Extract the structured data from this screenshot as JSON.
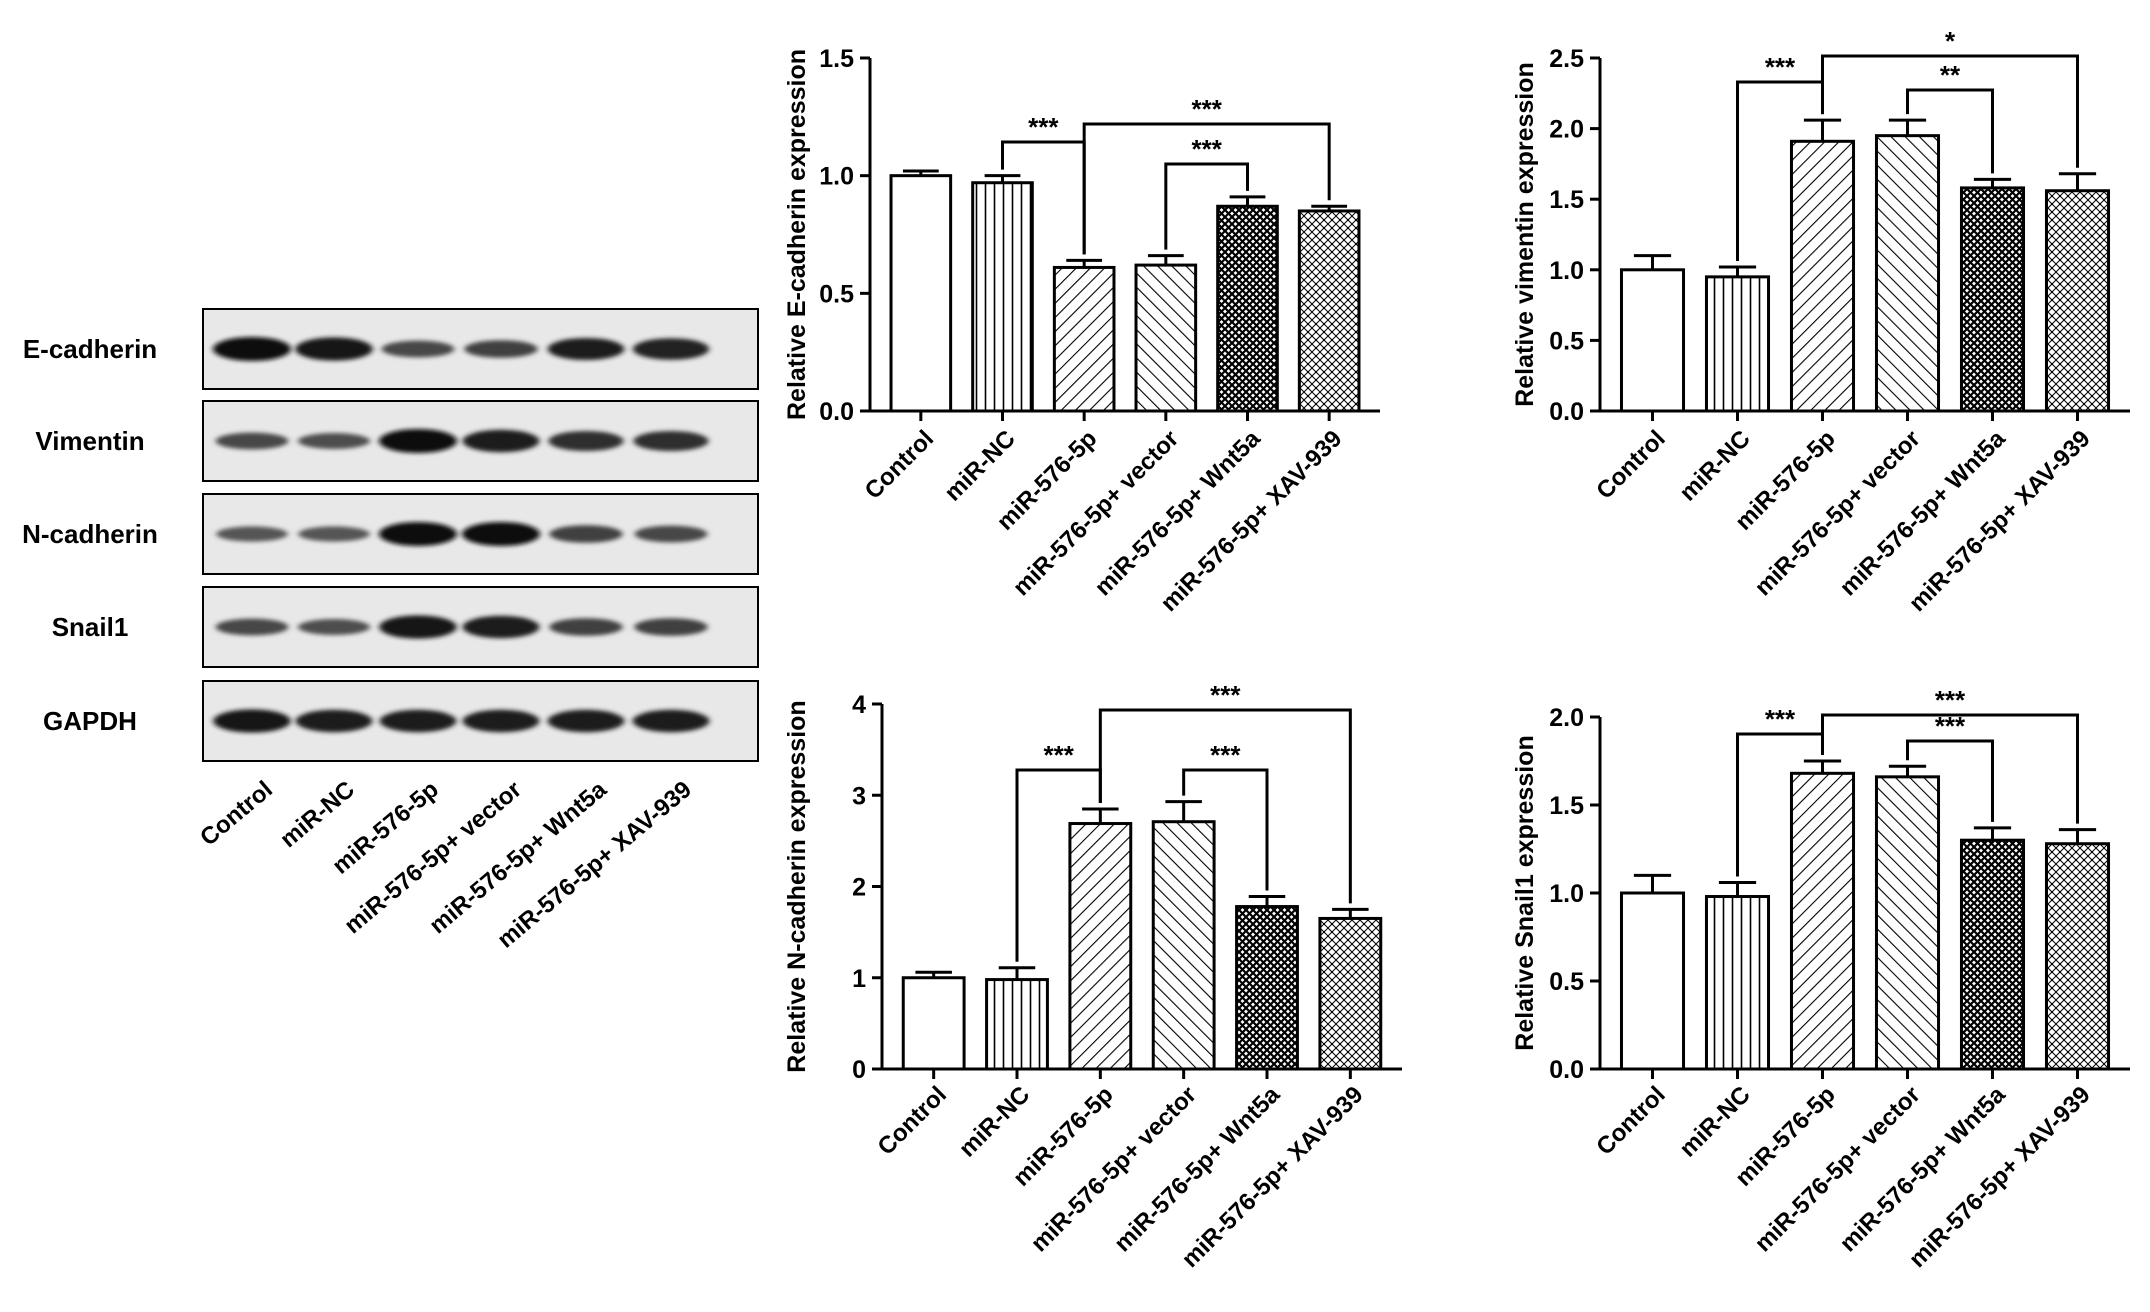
{
  "western_blot": {
    "bands": [
      "E-cadherin",
      "Vimentin",
      "N-cadherin",
      "Snail1",
      "GAPDH"
    ],
    "lanes": [
      "Control",
      "miR-NC",
      "miR-576-5p",
      "miR-576-5p+ vector",
      "miR-576-5p+ Wnt5a",
      "miR-576-5p+ XAV-939"
    ],
    "intensity": {
      "E-cadherin": [
        1.0,
        0.95,
        0.55,
        0.6,
        0.88,
        0.85
      ],
      "Vimentin": [
        0.55,
        0.5,
        1.0,
        0.9,
        0.75,
        0.75
      ],
      "N-cadherin": [
        0.45,
        0.45,
        1.0,
        1.0,
        0.6,
        0.55
      ],
      "Snail1": [
        0.55,
        0.5,
        0.95,
        0.9,
        0.6,
        0.6
      ],
      "GAPDH": [
        0.95,
        0.9,
        0.9,
        0.9,
        0.9,
        0.9
      ]
    }
  },
  "chart_data": [
    {
      "type": "bar",
      "ylabel": "Relative E-cadherin expression",
      "categories": [
        "Control",
        "miR-NC",
        "miR-576-5p",
        "miR-576-5p+ vector",
        "miR-576-5p+ Wnt5a",
        "miR-576-5p+ XAV-939"
      ],
      "values": [
        1.0,
        0.97,
        0.61,
        0.62,
        0.87,
        0.85
      ],
      "errors": [
        0.02,
        0.03,
        0.03,
        0.04,
        0.04,
        0.02
      ],
      "ylim": [
        0,
        1.5
      ],
      "yticks": [
        "0.0",
        "0.5",
        "1.0",
        "1.5"
      ],
      "significance": [
        {
          "from": 1,
          "to": 2,
          "label": "***"
        },
        {
          "from": 3,
          "to": 4,
          "label": "***"
        },
        {
          "from": 2,
          "to": 5,
          "label": "***"
        }
      ]
    },
    {
      "type": "bar",
      "ylabel": "Relative vimentin expression",
      "categories": [
        "Control",
        "miR-NC",
        "miR-576-5p",
        "miR-576-5p+ vector",
        "miR-576-5p+ Wnt5a",
        "miR-576-5p+ XAV-939"
      ],
      "values": [
        1.0,
        0.95,
        1.91,
        1.95,
        1.58,
        1.56
      ],
      "errors": [
        0.1,
        0.07,
        0.15,
        0.11,
        0.06,
        0.12
      ],
      "ylim": [
        0,
        2.5
      ],
      "yticks": [
        "0.0",
        "0.5",
        "1.0",
        "1.5",
        "2.0",
        "2.5"
      ],
      "significance": [
        {
          "from": 1,
          "to": 2,
          "label": "***"
        },
        {
          "from": 3,
          "to": 4,
          "label": "**"
        },
        {
          "from": 2,
          "to": 5,
          "label": "*"
        }
      ]
    },
    {
      "type": "bar",
      "ylabel": "Relative N-cadherin expression",
      "categories": [
        "Control",
        "miR-NC",
        "miR-576-5p",
        "miR-576-5p+ vector",
        "miR-576-5p+ Wnt5a",
        "miR-576-5p+ XAV-939"
      ],
      "values": [
        1.0,
        0.98,
        2.69,
        2.71,
        1.78,
        1.65
      ],
      "errors": [
        0.06,
        0.13,
        0.16,
        0.22,
        0.11,
        0.1
      ],
      "ylim": [
        0,
        4
      ],
      "yticks": [
        "0",
        "1",
        "2",
        "3",
        "4"
      ],
      "significance": [
        {
          "from": 1,
          "to": 2,
          "label": "***"
        },
        {
          "from": 3,
          "to": 4,
          "label": "***"
        },
        {
          "from": 2,
          "to": 5,
          "label": "***"
        }
      ]
    },
    {
      "type": "bar",
      "ylabel": "Relative Snail1 expression",
      "categories": [
        "Control",
        "miR-NC",
        "miR-576-5p",
        "miR-576-5p+ vector",
        "miR-576-5p+ Wnt5a",
        "miR-576-5p+ XAV-939"
      ],
      "values": [
        1.0,
        0.98,
        1.68,
        1.66,
        1.3,
        1.28
      ],
      "errors": [
        0.1,
        0.08,
        0.07,
        0.06,
        0.07,
        0.08
      ],
      "ylim": [
        0,
        2.0
      ],
      "yticks": [
        "0.0",
        "0.5",
        "1.0",
        "1.5",
        "2.0"
      ],
      "significance": [
        {
          "from": 1,
          "to": 2,
          "label": "***"
        },
        {
          "from": 3,
          "to": 4,
          "label": "***"
        },
        {
          "from": 2,
          "to": 5,
          "label": "***"
        }
      ]
    }
  ]
}
